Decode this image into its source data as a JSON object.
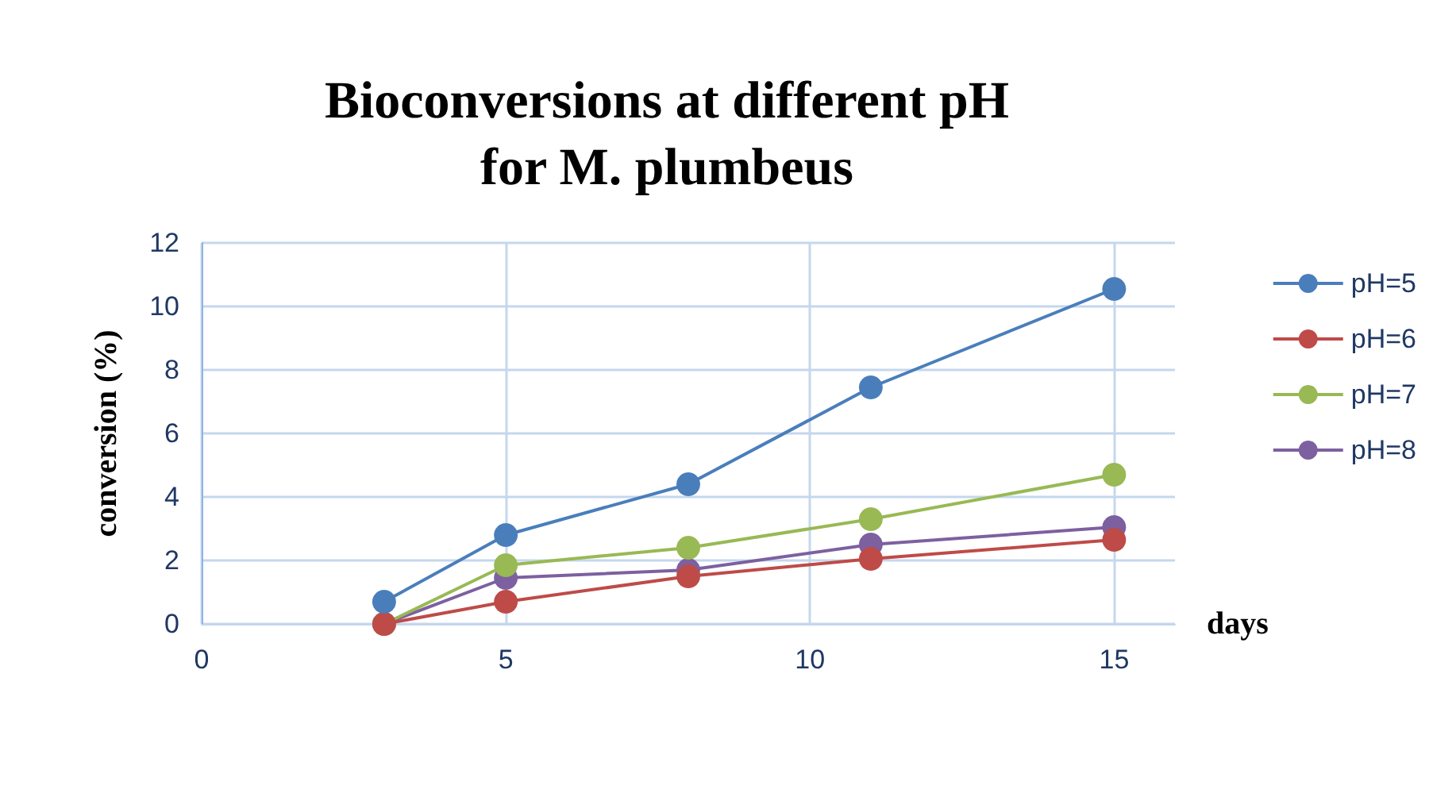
{
  "chart_data": {
    "type": "line",
    "title": "Bioconversions at different pH\nfor M. plumbeus",
    "xlabel": "days",
    "ylabel": "conversion (%)",
    "x": [
      3,
      5,
      8,
      11,
      15
    ],
    "series": [
      {
        "name": "pH=5",
        "color": "#4a7ebb",
        "values": [
          0.7,
          2.8,
          4.4,
          7.45,
          10.55
        ]
      },
      {
        "name": "pH=6",
        "color": "#be4b48",
        "values": [
          0,
          0.7,
          1.5,
          2.05,
          2.65
        ]
      },
      {
        "name": "pH=7",
        "color": "#98b954",
        "values": [
          0,
          1.85,
          2.4,
          3.3,
          4.7
        ]
      },
      {
        "name": "pH=8",
        "color": "#7d60a0",
        "values": [
          0,
          1.45,
          1.7,
          2.5,
          3.05
        ]
      }
    ],
    "xlim": [
      0,
      16
    ],
    "xticks": [
      0,
      5,
      10,
      15
    ],
    "ylim": [
      0,
      12
    ],
    "yticks": [
      0,
      2,
      4,
      6,
      8,
      10,
      12
    ],
    "grid": true,
    "legend": "right",
    "marker": "circle",
    "line_style": "solid"
  }
}
